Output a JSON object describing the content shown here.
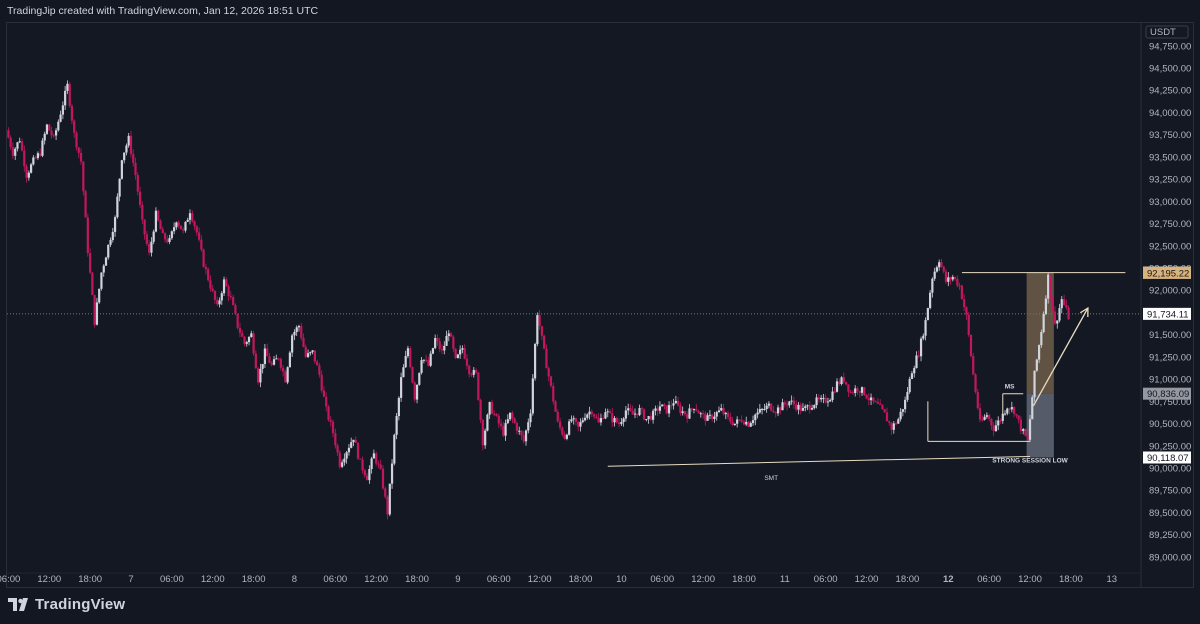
{
  "header": {
    "attribution": "TradingJip created with TradingView.com, Jan 12, 2026 18:51 UTC"
  },
  "footer": {
    "brand": "TradingView",
    "brand_icon": "tradingview-logo-icon"
  },
  "colors": {
    "background": "#131722",
    "up_candle": "#d1d4dc",
    "down_candle": "#c2185b",
    "current_price_tag": "#ffffff",
    "level_tag": "#d9b27c",
    "zone_upper": "#8b7355",
    "zone_lower": "#6b7280",
    "annotation_line": "#e8dcc0"
  },
  "chart_data": {
    "type": "candlestick",
    "symbol_quote": "USDT",
    "title": "",
    "xlabel": "",
    "ylabel": "",
    "ylim": [
      88875,
      94950
    ],
    "grid": false,
    "y_ticks": [
      "94,750.00",
      "94,500.00",
      "94,250.00",
      "94,000.00",
      "93,750.00",
      "93,500.00",
      "93,250.00",
      "93,000.00",
      "92,750.00",
      "92,500.00",
      "92,250.00",
      "92,000.00",
      "91,750.00",
      "91,500.00",
      "91,250.00",
      "91,000.00",
      "90,750.00",
      "90,500.00",
      "90,250.00",
      "90,000.00",
      "89,750.00",
      "89,500.00",
      "89,250.00",
      "89,000.00"
    ],
    "x_tick_labels": [
      {
        "t": 0,
        "label": "06:00",
        "bold": false
      },
      {
        "t": 6,
        "label": "12:00",
        "bold": false
      },
      {
        "t": 12,
        "label": "18:00",
        "bold": false
      },
      {
        "t": 18,
        "label": "7",
        "bold": false
      },
      {
        "t": 24,
        "label": "06:00",
        "bold": false
      },
      {
        "t": 30,
        "label": "12:00",
        "bold": false
      },
      {
        "t": 36,
        "label": "18:00",
        "bold": false
      },
      {
        "t": 42,
        "label": "8",
        "bold": false
      },
      {
        "t": 48,
        "label": "06:00",
        "bold": false
      },
      {
        "t": 54,
        "label": "12:00",
        "bold": false
      },
      {
        "t": 60,
        "label": "18:00",
        "bold": false
      },
      {
        "t": 66,
        "label": "9",
        "bold": false
      },
      {
        "t": 72,
        "label": "06:00",
        "bold": false
      },
      {
        "t": 78,
        "label": "12:00",
        "bold": false
      },
      {
        "t": 84,
        "label": "18:00",
        "bold": false
      },
      {
        "t": 90,
        "label": "10",
        "bold": false
      },
      {
        "t": 96,
        "label": "06:00",
        "bold": false
      },
      {
        "t": 102,
        "label": "12:00",
        "bold": false
      },
      {
        "t": 108,
        "label": "18:00",
        "bold": false
      },
      {
        "t": 114,
        "label": "11",
        "bold": false
      },
      {
        "t": 120,
        "label": "06:00",
        "bold": false
      },
      {
        "t": 126,
        "label": "12:00",
        "bold": false
      },
      {
        "t": 132,
        "label": "18:00",
        "bold": false
      },
      {
        "t": 138,
        "label": "12",
        "bold": true
      },
      {
        "t": 144,
        "label": "06:00",
        "bold": false
      },
      {
        "t": 150,
        "label": "12:00",
        "bold": false
      },
      {
        "t": 156,
        "label": "18:00",
        "bold": false
      },
      {
        "t": 162,
        "label": "13",
        "bold": false
      }
    ],
    "x_range_hours": [
      0,
      162
    ],
    "price_path": [
      [
        0,
        93800
      ],
      [
        1,
        93550
      ],
      [
        2,
        93700
      ],
      [
        3,
        93300
      ],
      [
        4,
        93450
      ],
      [
        5,
        93550
      ],
      [
        6,
        93850
      ],
      [
        7,
        93700
      ],
      [
        8,
        94000
      ],
      [
        9,
        94300
      ],
      [
        10,
        93750
      ],
      [
        11,
        93450
      ],
      [
        12,
        92450
      ],
      [
        13,
        91650
      ],
      [
        14,
        92200
      ],
      [
        15,
        92500
      ],
      [
        16,
        92800
      ],
      [
        17,
        93500
      ],
      [
        18,
        93700
      ],
      [
        19,
        93300
      ],
      [
        20,
        92750
      ],
      [
        21,
        92400
      ],
      [
        22,
        92850
      ],
      [
        23,
        92600
      ],
      [
        24,
        92550
      ],
      [
        25,
        92800
      ],
      [
        26,
        92650
      ],
      [
        27,
        92900
      ],
      [
        28,
        92650
      ],
      [
        29,
        92300
      ],
      [
        30,
        92050
      ],
      [
        31,
        91800
      ],
      [
        32,
        92100
      ],
      [
        33,
        91900
      ],
      [
        34,
        91600
      ],
      [
        35,
        91400
      ],
      [
        36,
        91500
      ],
      [
        37,
        91000
      ],
      [
        38,
        91300
      ],
      [
        39,
        91150
      ],
      [
        40,
        91250
      ],
      [
        41,
        91000
      ],
      [
        42,
        91500
      ],
      [
        43,
        91600
      ],
      [
        44,
        91250
      ],
      [
        45,
        91300
      ],
      [
        46,
        91050
      ],
      [
        47,
        90650
      ],
      [
        48,
        90400
      ],
      [
        49,
        90050
      ],
      [
        50,
        90200
      ],
      [
        51,
        90350
      ],
      [
        52,
        90050
      ],
      [
        53,
        89900
      ],
      [
        54,
        90150
      ],
      [
        55,
        89950
      ],
      [
        56,
        89500
      ],
      [
        57,
        90350
      ],
      [
        58,
        91000
      ],
      [
        59,
        91350
      ],
      [
        60,
        90800
      ],
      [
        61,
        91250
      ],
      [
        62,
        91150
      ],
      [
        63,
        91450
      ],
      [
        64,
        91300
      ],
      [
        65,
        91550
      ],
      [
        66,
        91200
      ],
      [
        67,
        91350
      ],
      [
        68,
        91100
      ],
      [
        69,
        91050
      ],
      [
        70,
        90300
      ],
      [
        71,
        90700
      ],
      [
        72,
        90550
      ],
      [
        73,
        90400
      ],
      [
        74,
        90600
      ],
      [
        75,
        90450
      ],
      [
        76,
        90300
      ],
      [
        77,
        90650
      ],
      [
        78,
        91750
      ],
      [
        79,
        91300
      ],
      [
        80,
        90900
      ],
      [
        81,
        90500
      ],
      [
        82,
        90350
      ],
      [
        83,
        90550
      ],
      [
        84,
        90450
      ],
      [
        85,
        90600
      ],
      [
        86,
        90650
      ],
      [
        87,
        90500
      ],
      [
        88,
        90650
      ],
      [
        89,
        90550
      ],
      [
        90,
        90500
      ],
      [
        91,
        90650
      ],
      [
        92,
        90600
      ],
      [
        93,
        90650
      ],
      [
        94,
        90550
      ],
      [
        95,
        90600
      ],
      [
        96,
        90700
      ],
      [
        97,
        90650
      ],
      [
        98,
        90750
      ],
      [
        99,
        90650
      ],
      [
        100,
        90600
      ],
      [
        101,
        90700
      ],
      [
        102,
        90600
      ],
      [
        103,
        90550
      ],
      [
        104,
        90600
      ],
      [
        105,
        90650
      ],
      [
        106,
        90550
      ],
      [
        107,
        90500
      ],
      [
        108,
        90550
      ],
      [
        109,
        90500
      ],
      [
        110,
        90600
      ],
      [
        111,
        90650
      ],
      [
        112,
        90700
      ],
      [
        113,
        90650
      ],
      [
        114,
        90700
      ],
      [
        115,
        90750
      ],
      [
        116,
        90700
      ],
      [
        117,
        90650
      ],
      [
        118,
        90700
      ],
      [
        119,
        90750
      ],
      [
        120,
        90750
      ],
      [
        121,
        90800
      ],
      [
        122,
        90950
      ],
      [
        123,
        91000
      ],
      [
        124,
        90850
      ],
      [
        125,
        90900
      ],
      [
        126,
        90850
      ],
      [
        127,
        90750
      ],
      [
        128,
        90700
      ],
      [
        129,
        90600
      ],
      [
        130,
        90450
      ],
      [
        131,
        90550
      ],
      [
        132,
        90750
      ],
      [
        133,
        91100
      ],
      [
        134,
        91300
      ],
      [
        135,
        91650
      ],
      [
        136,
        92150
      ],
      [
        137,
        92350
      ],
      [
        138,
        92100
      ],
      [
        139,
        92150
      ],
      [
        140,
        92050
      ],
      [
        141,
        91700
      ],
      [
        142,
        91050
      ],
      [
        143,
        90500
      ],
      [
        144,
        90600
      ],
      [
        145,
        90450
      ],
      [
        146,
        90550
      ],
      [
        147,
        90700
      ],
      [
        148,
        90650
      ],
      [
        149,
        90450
      ],
      [
        150,
        90300
      ],
      [
        151,
        91050
      ],
      [
        152,
        91550
      ],
      [
        153,
        92150
      ],
      [
        154,
        91600
      ],
      [
        155,
        91900
      ],
      [
        156,
        91700
      ]
    ],
    "current_price": {
      "value": 91734.11,
      "label": "91,734.11"
    },
    "price_tags": [
      {
        "label": "92,198.03",
        "value": 92198.03,
        "style": "light"
      },
      {
        "label": "92,195.22",
        "value": 92195.22,
        "style": "tan"
      },
      {
        "label": "91,734.11",
        "value": 91734.11,
        "style": "light"
      },
      {
        "label": "90,836.09",
        "value": 90836.09,
        "style": "grey"
      },
      {
        "label": "90,118.07",
        "value": 90118.07,
        "style": "light"
      }
    ],
    "annotations": [
      {
        "text": "SMT",
        "t": 112,
        "price": 89980
      },
      {
        "text": "STRONG SESSION LOW",
        "t": 150,
        "price": 90060
      },
      {
        "text": "MS",
        "t": 147,
        "price": 90860
      }
    ],
    "lines": [
      {
        "name": "smt-line",
        "t1": 88,
        "p1": 90020,
        "t2": 150,
        "p2": 90130
      },
      {
        "name": "session-low-line",
        "t1": 135,
        "p1": 90300,
        "t2": 150,
        "p2": 90300
      },
      {
        "name": "session-high-line",
        "t1": 140,
        "p1": 92198,
        "t2": 164,
        "p2": 92198
      },
      {
        "name": "ms-line",
        "t1": 146,
        "p1": 90836,
        "t2": 149,
        "p2": 90836
      }
    ],
    "zones": [
      {
        "name": "premium-zone",
        "t1": 149.5,
        "t2": 153.5,
        "p_top": 92195,
        "p_bottom": 90836
      },
      {
        "name": "discount-zone",
        "t1": 149.5,
        "t2": 153.5,
        "p_top": 90836,
        "p_bottom": 90118
      }
    ],
    "projection": {
      "points": [
        [
          150.5,
          90700
        ],
        [
          158.5,
          91800
        ]
      ]
    }
  }
}
